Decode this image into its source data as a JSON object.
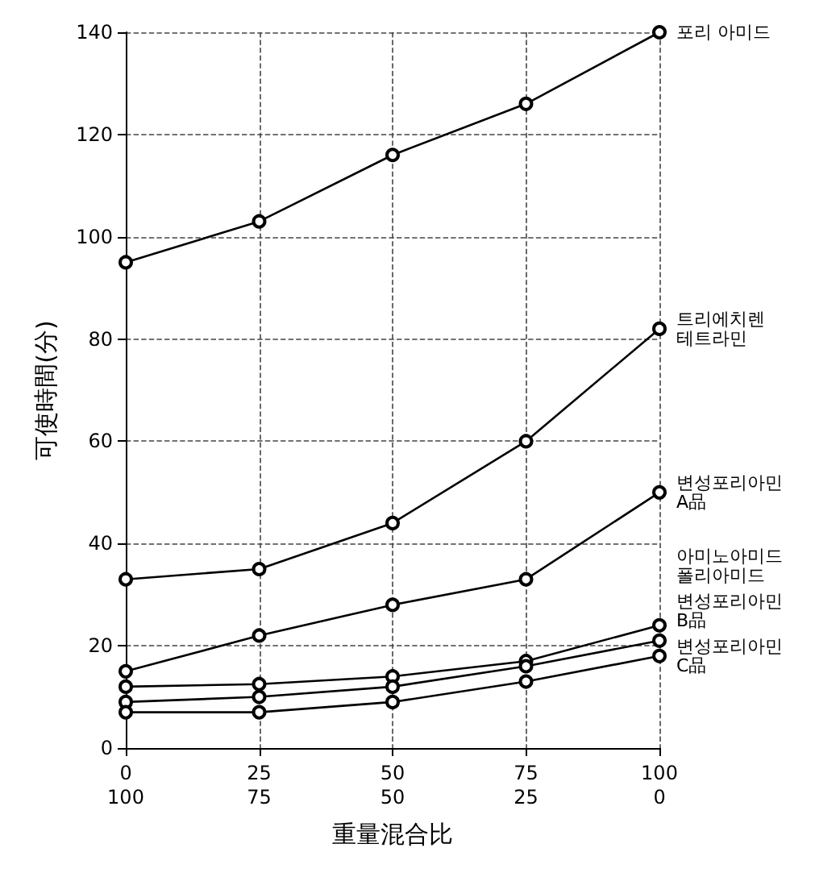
{
  "chart_data": {
    "type": "line",
    "xlabel": "重量混合比",
    "ylabel": "可使時間(分)",
    "categories": [
      "0\n100",
      "25\n75",
      "50\n50",
      "75\n25",
      "100\n0"
    ],
    "ylim": [
      0,
      140
    ],
    "yticks": [
      0,
      20,
      40,
      60,
      80,
      100,
      120,
      140
    ],
    "grid": true,
    "marker": "circle",
    "line_style": "solid",
    "legend": false,
    "series": [
      {
        "name": "포리 아미드",
        "color": "#000000",
        "values": [
          95,
          103,
          116,
          126,
          140
        ]
      },
      {
        "name": "트리에치렌\n테트라민",
        "color": "#000000",
        "values": [
          33,
          35,
          44,
          60,
          82
        ]
      },
      {
        "name": "변성포리아민\nA品",
        "color": "#000000",
        "values": [
          15,
          22,
          28,
          33,
          50
        ]
      },
      {
        "name": "아미노아미드\n폴리아미드",
        "color": "#000000",
        "values": [
          12,
          12.5,
          14,
          17,
          24
        ]
      },
      {
        "name": "변성포리아민\nB品",
        "color": "#000000",
        "values": [
          9,
          10,
          12,
          16,
          21
        ]
      },
      {
        "name": "변성포리아민\nC品",
        "color": "#000000",
        "values": [
          7,
          7,
          9,
          13,
          18
        ]
      }
    ]
  }
}
